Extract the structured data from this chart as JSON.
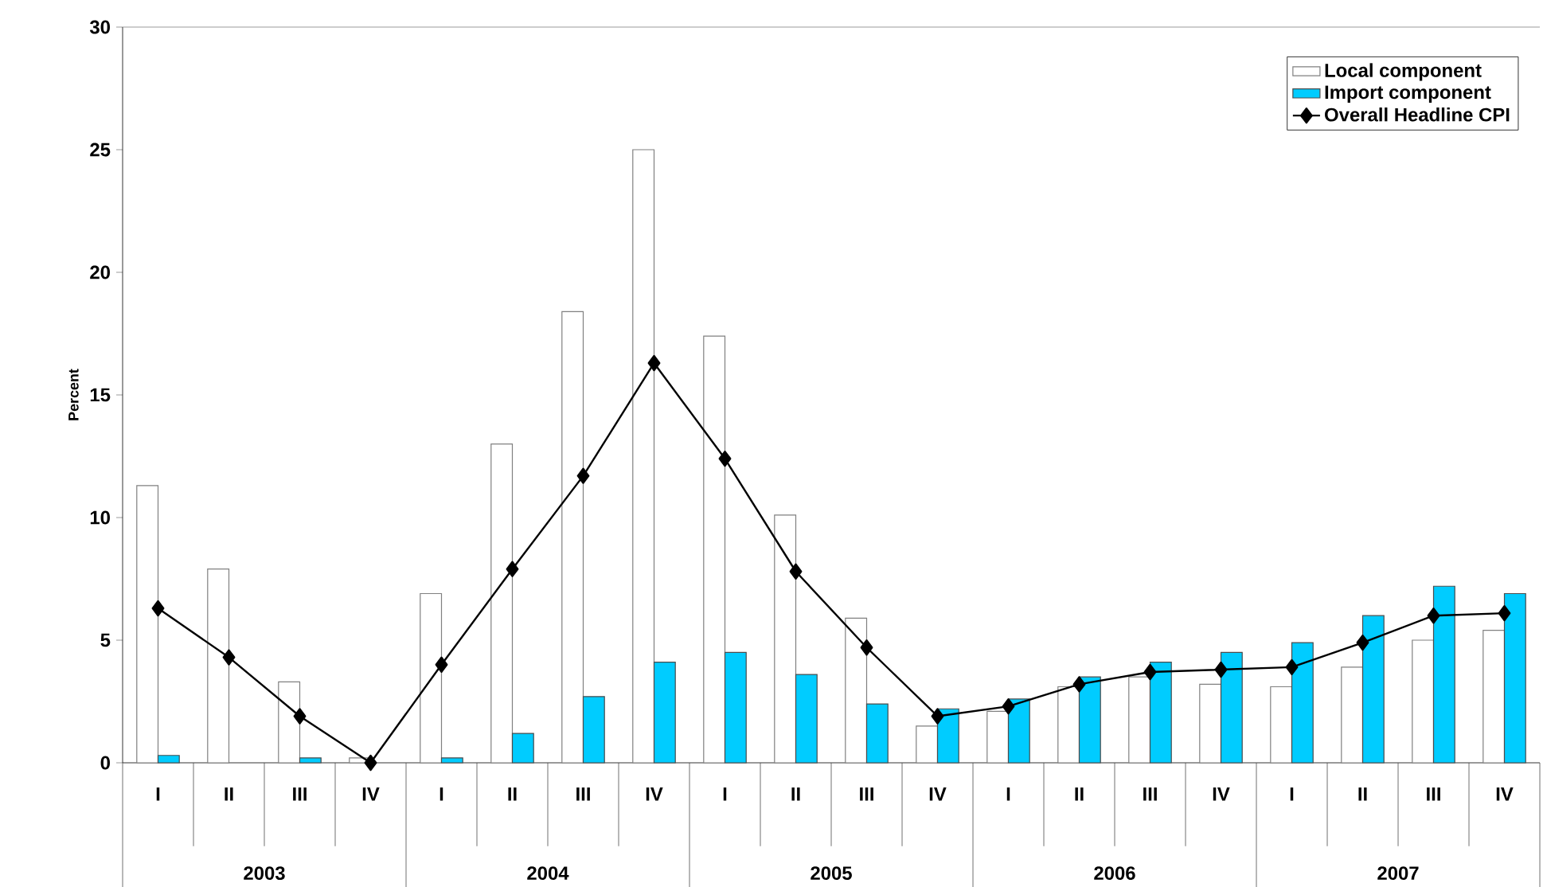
{
  "chart_data": {
    "type": "bar",
    "ylabel": "Percent",
    "categories": [
      "I",
      "II",
      "III",
      "IV",
      "I",
      "II",
      "III",
      "IV",
      "I",
      "II",
      "III",
      "IV",
      "I",
      "II",
      "III",
      "IV",
      "I",
      "II",
      "III",
      "IV"
    ],
    "series": [
      {
        "name": "Local component",
        "color": "#ffffff",
        "values": [
          11.3,
          7.9,
          3.3,
          0.2,
          6.9,
          13.0,
          18.4,
          25.0,
          17.4,
          10.1,
          5.9,
          1.5,
          2.1,
          3.1,
          3.5,
          3.2,
          3.1,
          3.9,
          5.0,
          5.4
        ]
      },
      {
        "name": "Import component",
        "color": "#00ccff",
        "values": [
          0.3,
          null,
          0.2,
          null,
          0.2,
          1.2,
          2.7,
          4.1,
          4.5,
          3.6,
          2.4,
          2.2,
          2.6,
          3.5,
          4.1,
          4.5,
          4.9,
          6.0,
          7.2,
          6.9
        ]
      },
      {
        "name": "Overall Headline CPI",
        "type": "line",
        "color": "#000000",
        "marker": "diamond",
        "values": [
          6.3,
          4.3,
          1.9,
          0.0,
          4.0,
          7.9,
          11.7,
          16.3,
          12.4,
          7.8,
          4.7,
          1.9,
          2.3,
          3.2,
          3.7,
          3.8,
          3.9,
          4.9,
          6.0,
          6.1
        ]
      }
    ],
    "ylim": [
      0,
      30
    ],
    "yticks": [
      0,
      5,
      10,
      15,
      20,
      25,
      30
    ],
    "grid": false,
    "legend": "top right",
    "annotations": [
      "2003",
      "2004",
      "2005",
      "2006",
      "2007"
    ]
  }
}
